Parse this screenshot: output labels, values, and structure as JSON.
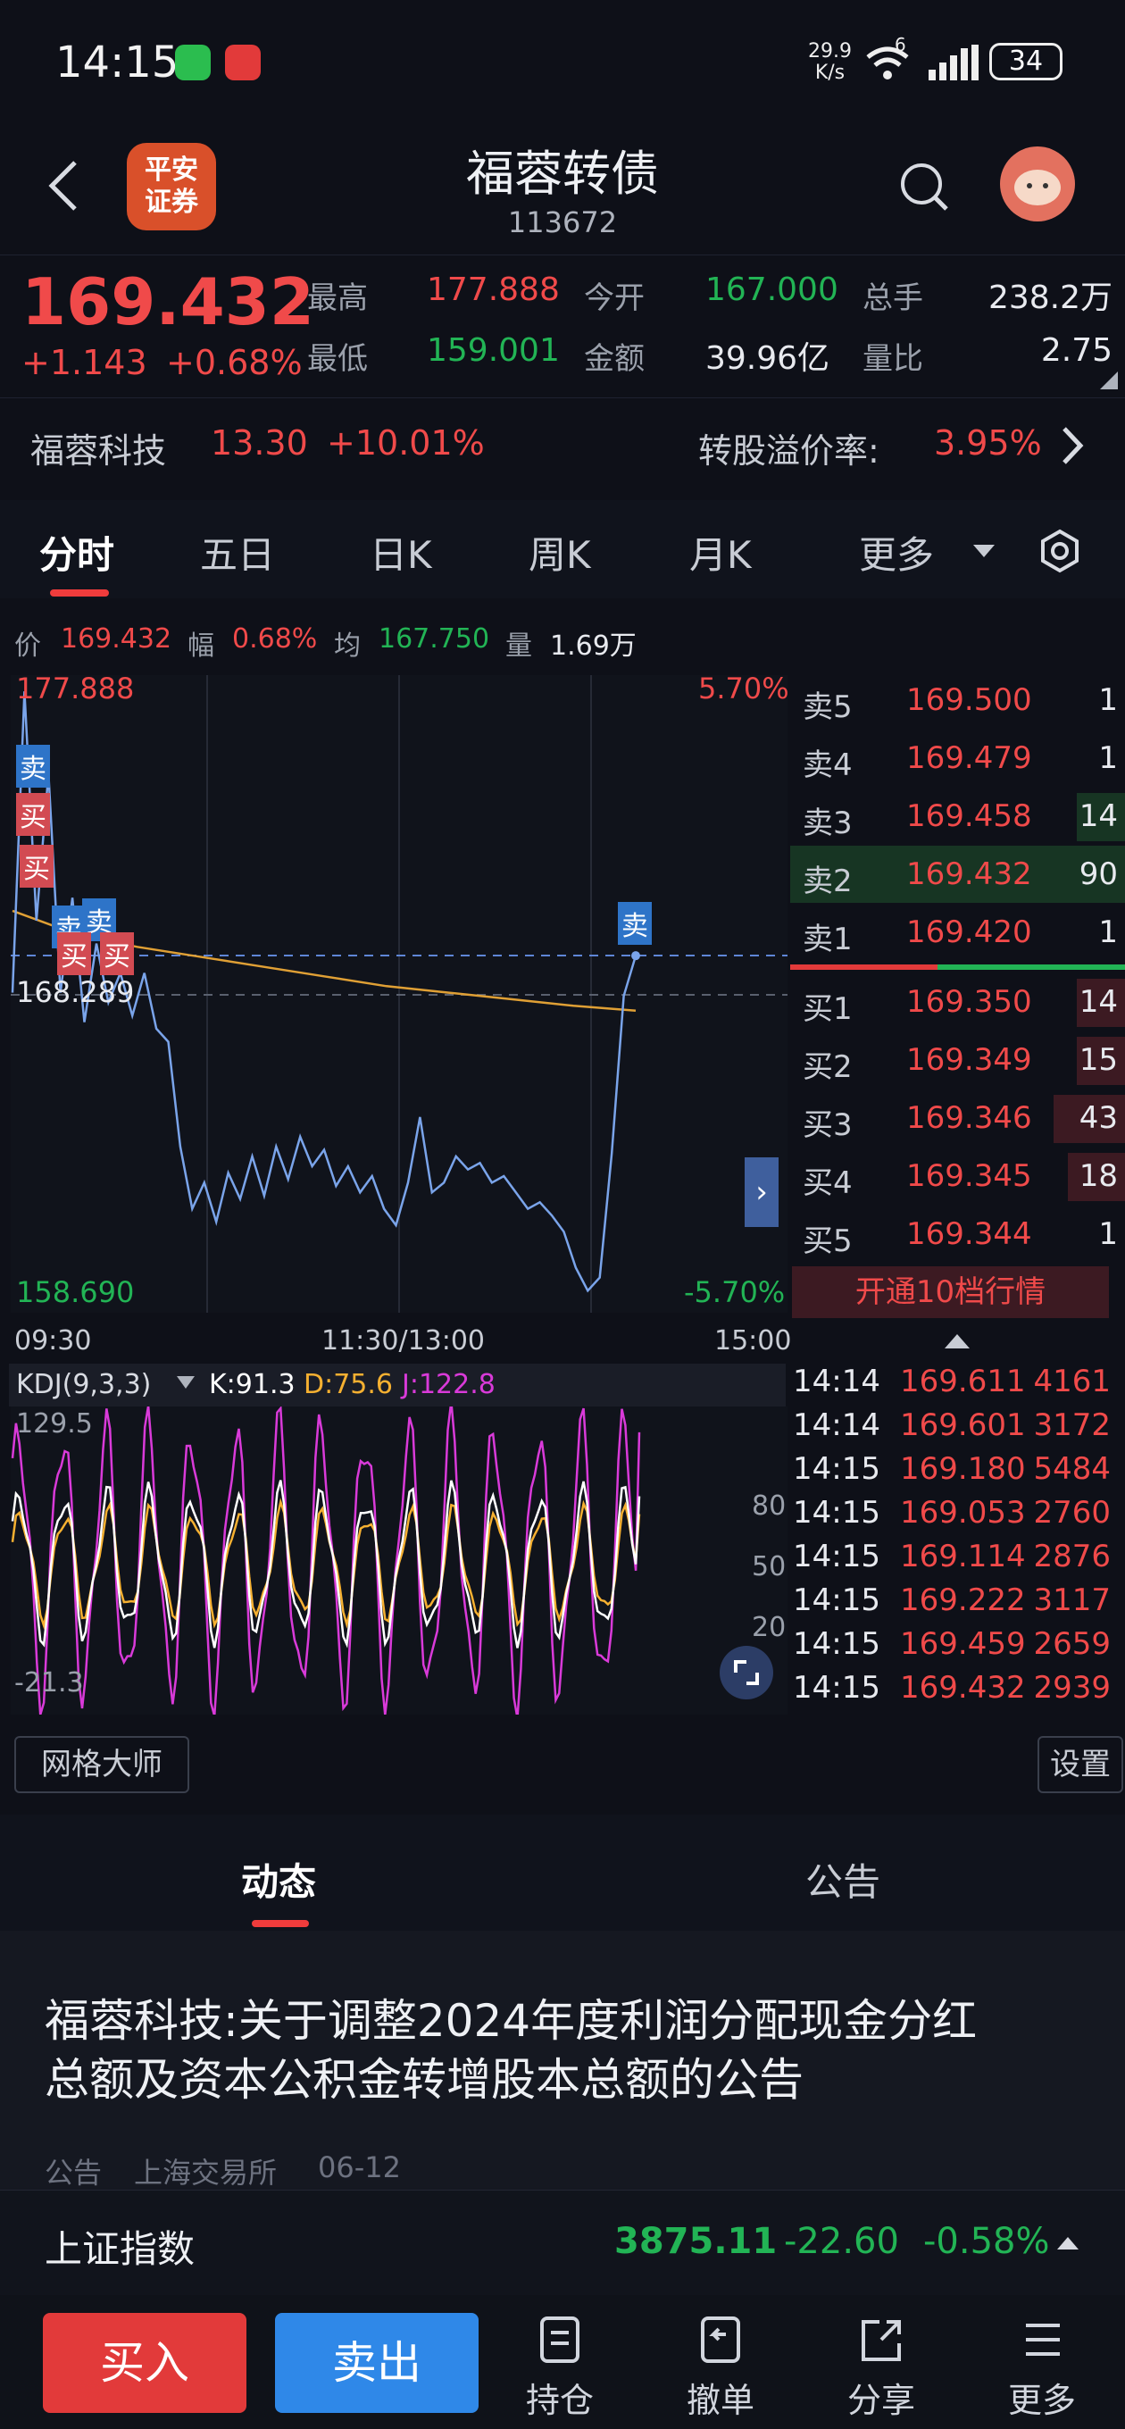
{
  "status": {
    "time": "14:15",
    "net_speed_value": "29.9",
    "net_speed_unit": "K/s",
    "wifi_label": "6",
    "battery": "34"
  },
  "header": {
    "broker_logo_line1": "平安",
    "broker_logo_line2": "证券",
    "title": "福蓉转债",
    "code": "113672"
  },
  "quote": {
    "price": "169.432",
    "change": "+1.143",
    "change_pct": "+0.68%",
    "high_label": "最高",
    "high": "177.888",
    "low_label": "最低",
    "low": "159.001",
    "open_label": "今开",
    "open": "167.000",
    "amount_label": "金额",
    "amount": "39.96亿",
    "volume_label": "总手",
    "volume": "238.2万",
    "ratio_label": "量比",
    "ratio": "2.75"
  },
  "underlying": {
    "name": "福蓉科技",
    "price": "13.30",
    "change_pct": "+10.01%",
    "premium_label": "转股溢价率:",
    "premium": "3.95%"
  },
  "tabs": [
    {
      "label": "分时"
    },
    {
      "label": "五日"
    },
    {
      "label": "日K"
    },
    {
      "label": "周K"
    },
    {
      "label": "月K"
    },
    {
      "label": "更多"
    }
  ],
  "info": {
    "price_label": "价",
    "price": "169.432",
    "range_label": "幅",
    "range": "0.68%",
    "avg_label": "均",
    "avg": "167.750",
    "vol_label": "量",
    "vol": "1.69万"
  },
  "chart_labels": {
    "top_price": "177.888",
    "top_pct": "5.70%",
    "mid_price": "168.289",
    "bottom_price": "158.690",
    "bottom_pct": "-5.70%",
    "time_start": "09:30",
    "time_mid": "11:30/13:00",
    "time_end": "15:00",
    "sell_tag": "卖",
    "buy_tag": "买"
  },
  "chart_data": {
    "type": "line",
    "ylim": [
      158.69,
      177.888
    ],
    "series": [
      {
        "values": [
          168.3,
          177.5,
          170.5,
          175.0,
          168.3,
          171.2,
          167.4,
          169.8,
          168.0,
          168.9,
          167.6,
          168.9,
          167.2,
          166.8,
          163.6,
          161.7,
          162.5,
          161.3,
          162.8,
          162.0,
          163.3,
          162.1,
          163.6,
          162.6,
          163.9,
          163.0,
          163.5,
          162.4,
          163.0,
          162.2,
          162.7,
          161.7,
          161.2,
          162.5,
          164.5,
          162.2,
          162.5,
          163.3,
          162.9,
          163.1,
          162.5,
          162.7,
          162.2,
          161.7,
          161.9,
          161.5,
          161.0,
          159.9,
          159.2,
          159.6,
          163.4,
          168.2,
          169.43
        ]
      },
      {
        "values": [
          170.8,
          170.1,
          169.7,
          169.4,
          169.1,
          168.8,
          168.5,
          168.3,
          168.1,
          167.9,
          167.75
        ]
      }
    ]
  },
  "orderbook": {
    "asks": [
      {
        "label": "卖5",
        "price": "169.500",
        "vol": "1"
      },
      {
        "label": "卖4",
        "price": "169.479",
        "vol": "1"
      },
      {
        "label": "卖3",
        "price": "169.458",
        "vol": "14"
      },
      {
        "label": "卖2",
        "price": "169.432",
        "vol": "90"
      },
      {
        "label": "卖1",
        "price": "169.420",
        "vol": "1"
      }
    ],
    "bids": [
      {
        "label": "买1",
        "price": "169.350",
        "vol": "14"
      },
      {
        "label": "买2",
        "price": "169.349",
        "vol": "15"
      },
      {
        "label": "买3",
        "price": "169.346",
        "vol": "43"
      },
      {
        "label": "买4",
        "price": "169.345",
        "vol": "18"
      },
      {
        "label": "买5",
        "price": "169.344",
        "vol": "1"
      }
    ],
    "open10": "开通10档行情"
  },
  "kdj": {
    "name": "KDJ(9,3,3)",
    "k": "K:91.3",
    "d": "D:75.6",
    "j": "J:122.8",
    "max": "129.5",
    "min": "-21.3",
    "l80": "80",
    "l50": "50",
    "l20": "20",
    "color_k": "#ffffff",
    "color_d": "#f5b031",
    "color_j": "#d93ad9"
  },
  "ticks": [
    {
      "t": "14:14",
      "p": "169.611",
      "v": "4161"
    },
    {
      "t": "14:14",
      "p": "169.601",
      "v": "3172"
    },
    {
      "t": "14:15",
      "p": "169.180",
      "v": "5484"
    },
    {
      "t": "14:15",
      "p": "169.053",
      "v": "2760"
    },
    {
      "t": "14:15",
      "p": "169.114",
      "v": "2876"
    },
    {
      "t": "14:15",
      "p": "169.222",
      "v": "3117"
    },
    {
      "t": "14:15",
      "p": "169.459",
      "v": "2659"
    },
    {
      "t": "14:15",
      "p": "169.432",
      "v": "2939"
    }
  ],
  "buttons": {
    "grid_master": "网格大师",
    "settings": "设置"
  },
  "news_tabs": {
    "active": "动态",
    "other": "公告"
  },
  "news": {
    "title": "福蓉科技:关于调整2024年度利润分配现金分红总额及资本公积金转增股本总额的公告",
    "type": "公告",
    "source": "上海交易所",
    "date": "06-12"
  },
  "index": {
    "name": "上证指数",
    "value": "3875.11",
    "change": "-22.60",
    "pct": "-0.58%"
  },
  "bottom": {
    "buy": "买入",
    "sell": "卖出",
    "position": "持仓",
    "cancel": "撤单",
    "share": "分享",
    "more": "更多"
  },
  "colors": {
    "up": "#f04a4a",
    "down": "#22b455",
    "buy_button": "#e23a3a",
    "sell_button": "#2f88e8",
    "price_line": "#7aa4ea",
    "avg_line": "#e0a035"
  }
}
